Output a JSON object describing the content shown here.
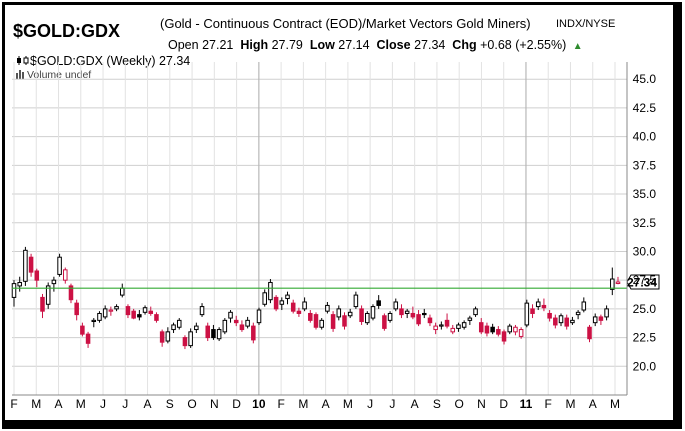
{
  "header": {
    "symbol": "$GOLD:GDX",
    "description": "(Gold - Continuous Contract (EOD)/Market Vectors Gold Miners)",
    "exchange": "INDX/NYSE",
    "open_label": "Open",
    "open_value": "27.21",
    "high_label": "High",
    "high_value": "27.79",
    "low_label": "Low",
    "low_value": "27.14",
    "close_label": "Close",
    "close_value": "27.34",
    "chg_label": "Chg",
    "chg_value": "+0.68 (+2.55%)"
  },
  "legend": {
    "series_label": "$GOLD:GDX (Weekly) 27.34",
    "volume_label": "Volume undef"
  },
  "colors": {
    "up": "#000000",
    "down": "#cc1144",
    "last_price_line": "#33aa33",
    "grid": "#cfcfcf"
  },
  "chart_data": {
    "type": "candlestick",
    "interval": "Weekly",
    "y_axis": {
      "min": 17.5,
      "max": 46.5,
      "ticks": [
        "45.0",
        "42.5",
        "40.0",
        "37.5",
        "35.0",
        "32.5",
        "30.0",
        "27.5",
        "25.0",
        "22.5",
        "20.0"
      ],
      "position": "right"
    },
    "x_axis": {
      "labels": [
        "F",
        "M",
        "A",
        "M",
        "J",
        "J",
        "A",
        "S",
        "O",
        "N",
        "D",
        "10",
        "F",
        "M",
        "A",
        "M",
        "J",
        "J",
        "A",
        "S",
        "O",
        "N",
        "D",
        "11",
        "F",
        "M",
        "A",
        "M"
      ]
    },
    "last_price": "27.34",
    "grid": true,
    "candles": [
      {
        "o": 26.0,
        "h": 27.5,
        "l": 25.2,
        "c": 27.2
      },
      {
        "o": 27.0,
        "h": 27.8,
        "l": 26.5,
        "c": 27.3
      },
      {
        "o": 27.4,
        "h": 30.4,
        "l": 27.0,
        "c": 30.1
      },
      {
        "o": 29.5,
        "h": 29.8,
        "l": 27.8,
        "c": 28.2
      },
      {
        "o": 28.3,
        "h": 28.5,
        "l": 26.9,
        "c": 27.5
      },
      {
        "o": 26.0,
        "h": 26.3,
        "l": 24.2,
        "c": 24.8
      },
      {
        "o": 25.4,
        "h": 27.3,
        "l": 25.0,
        "c": 27.0
      },
      {
        "o": 27.2,
        "h": 27.8,
        "l": 26.5,
        "c": 27.5
      },
      {
        "o": 28.0,
        "h": 29.8,
        "l": 27.8,
        "c": 29.5
      },
      {
        "o": 27.5,
        "h": 28.6,
        "l": 27.2,
        "c": 28.4
      },
      {
        "o": 27.0,
        "h": 27.2,
        "l": 25.5,
        "c": 25.8
      },
      {
        "o": 25.5,
        "h": 25.8,
        "l": 24.0,
        "c": 24.5
      },
      {
        "o": 23.5,
        "h": 23.8,
        "l": 22.6,
        "c": 22.8
      },
      {
        "o": 22.8,
        "h": 23.0,
        "l": 21.6,
        "c": 22.0
      },
      {
        "o": 23.9,
        "h": 24.2,
        "l": 23.4,
        "c": 24.0
      },
      {
        "o": 24.0,
        "h": 24.8,
        "l": 23.8,
        "c": 24.6
      },
      {
        "o": 24.3,
        "h": 25.3,
        "l": 24.1,
        "c": 25.0
      },
      {
        "o": 24.8,
        "h": 25.2,
        "l": 24.4,
        "c": 24.9
      },
      {
        "o": 25.0,
        "h": 25.4,
        "l": 24.8,
        "c": 25.2
      },
      {
        "o": 26.2,
        "h": 27.2,
        "l": 26.0,
        "c": 26.8
      },
      {
        "o": 25.2,
        "h": 25.4,
        "l": 24.2,
        "c": 24.5
      },
      {
        "o": 24.8,
        "h": 25.0,
        "l": 24.1,
        "c": 24.2
      },
      {
        "o": 24.5,
        "h": 24.9,
        "l": 24.0,
        "c": 24.3
      },
      {
        "o": 24.7,
        "h": 25.3,
        "l": 24.5,
        "c": 25.1
      },
      {
        "o": 24.8,
        "h": 25.2,
        "l": 24.4,
        "c": 24.6
      },
      {
        "o": 24.5,
        "h": 24.7,
        "l": 23.8,
        "c": 24.0
      },
      {
        "o": 23.0,
        "h": 23.2,
        "l": 21.7,
        "c": 22.1
      },
      {
        "o": 22.2,
        "h": 23.4,
        "l": 22.0,
        "c": 23.0
      },
      {
        "o": 23.2,
        "h": 23.8,
        "l": 22.9,
        "c": 23.6
      },
      {
        "o": 23.4,
        "h": 24.2,
        "l": 23.2,
        "c": 24.0
      },
      {
        "o": 22.5,
        "h": 22.7,
        "l": 21.5,
        "c": 21.8
      },
      {
        "o": 21.8,
        "h": 23.3,
        "l": 21.6,
        "c": 23.0
      },
      {
        "o": 23.2,
        "h": 23.8,
        "l": 22.9,
        "c": 23.5
      },
      {
        "o": 24.5,
        "h": 25.5,
        "l": 24.3,
        "c": 25.2
      },
      {
        "o": 23.5,
        "h": 23.8,
        "l": 22.2,
        "c": 22.5
      },
      {
        "o": 23.2,
        "h": 23.6,
        "l": 22.3,
        "c": 22.5
      },
      {
        "o": 22.4,
        "h": 23.4,
        "l": 22.2,
        "c": 23.2
      },
      {
        "o": 23.0,
        "h": 24.2,
        "l": 22.8,
        "c": 24.0
      },
      {
        "o": 24.2,
        "h": 24.9,
        "l": 23.8,
        "c": 24.7
      },
      {
        "o": 24.0,
        "h": 24.4,
        "l": 23.5,
        "c": 23.8
      },
      {
        "o": 23.6,
        "h": 24.0,
        "l": 23.0,
        "c": 23.2
      },
      {
        "o": 23.5,
        "h": 24.3,
        "l": 23.3,
        "c": 24.0
      },
      {
        "o": 23.5,
        "h": 23.8,
        "l": 22.0,
        "c": 22.3
      },
      {
        "o": 23.8,
        "h": 25.1,
        "l": 23.6,
        "c": 24.9
      },
      {
        "o": 25.4,
        "h": 26.7,
        "l": 25.2,
        "c": 26.4
      },
      {
        "o": 25.8,
        "h": 27.6,
        "l": 25.5,
        "c": 27.3
      },
      {
        "o": 26.0,
        "h": 26.2,
        "l": 24.8,
        "c": 25.0
      },
      {
        "o": 25.4,
        "h": 26.0,
        "l": 24.9,
        "c": 25.7
      },
      {
        "o": 25.9,
        "h": 26.5,
        "l": 25.4,
        "c": 26.2
      },
      {
        "o": 25.5,
        "h": 25.8,
        "l": 24.6,
        "c": 24.8
      },
      {
        "o": 24.8,
        "h": 25.1,
        "l": 24.3,
        "c": 24.6
      },
      {
        "o": 25.0,
        "h": 26.0,
        "l": 24.8,
        "c": 25.6
      },
      {
        "o": 24.6,
        "h": 24.9,
        "l": 23.8,
        "c": 24.0
      },
      {
        "o": 24.5,
        "h": 24.7,
        "l": 23.2,
        "c": 23.4
      },
      {
        "o": 23.4,
        "h": 24.2,
        "l": 23.2,
        "c": 24.0
      },
      {
        "o": 24.8,
        "h": 25.6,
        "l": 24.6,
        "c": 25.3
      },
      {
        "o": 24.5,
        "h": 24.8,
        "l": 23.0,
        "c": 23.3
      },
      {
        "o": 24.3,
        "h": 25.3,
        "l": 24.0,
        "c": 25.0
      },
      {
        "o": 24.4,
        "h": 24.7,
        "l": 23.2,
        "c": 23.5
      },
      {
        "o": 24.4,
        "h": 25.0,
        "l": 24.2,
        "c": 24.7
      },
      {
        "o": 25.2,
        "h": 26.5,
        "l": 25.0,
        "c": 26.2
      },
      {
        "o": 25.0,
        "h": 25.3,
        "l": 23.6,
        "c": 23.9
      },
      {
        "o": 23.8,
        "h": 24.8,
        "l": 23.6,
        "c": 24.6
      },
      {
        "o": 24.2,
        "h": 25.4,
        "l": 24.0,
        "c": 25.2
      },
      {
        "o": 25.7,
        "h": 26.2,
        "l": 25.0,
        "c": 25.3
      },
      {
        "o": 24.4,
        "h": 24.6,
        "l": 23.1,
        "c": 23.3
      },
      {
        "o": 24.0,
        "h": 24.8,
        "l": 23.8,
        "c": 24.6
      },
      {
        "o": 25.0,
        "h": 25.9,
        "l": 24.8,
        "c": 25.6
      },
      {
        "o": 25.0,
        "h": 25.4,
        "l": 24.2,
        "c": 24.5
      },
      {
        "o": 24.6,
        "h": 25.0,
        "l": 24.2,
        "c": 24.8
      },
      {
        "o": 24.6,
        "h": 25.2,
        "l": 24.1,
        "c": 24.3
      },
      {
        "o": 24.5,
        "h": 24.9,
        "l": 23.5,
        "c": 23.7
      },
      {
        "o": 24.6,
        "h": 25.0,
        "l": 24.2,
        "c": 24.5
      },
      {
        "o": 24.2,
        "h": 24.5,
        "l": 23.5,
        "c": 23.8
      },
      {
        "o": 23.2,
        "h": 23.8,
        "l": 22.8,
        "c": 23.5
      },
      {
        "o": 23.5,
        "h": 23.9,
        "l": 23.2,
        "c": 23.6
      },
      {
        "o": 24.0,
        "h": 24.6,
        "l": 23.3,
        "c": 23.5
      },
      {
        "o": 23.0,
        "h": 23.6,
        "l": 22.8,
        "c": 23.3
      },
      {
        "o": 23.3,
        "h": 23.8,
        "l": 23.0,
        "c": 23.6
      },
      {
        "o": 23.4,
        "h": 24.0,
        "l": 23.2,
        "c": 23.8
      },
      {
        "o": 24.0,
        "h": 24.4,
        "l": 23.6,
        "c": 24.2
      },
      {
        "o": 24.5,
        "h": 25.2,
        "l": 24.3,
        "c": 25.0
      },
      {
        "o": 23.8,
        "h": 24.2,
        "l": 22.8,
        "c": 23.0
      },
      {
        "o": 23.5,
        "h": 23.8,
        "l": 22.6,
        "c": 22.9
      },
      {
        "o": 23.4,
        "h": 23.7,
        "l": 22.8,
        "c": 23.0
      },
      {
        "o": 23.2,
        "h": 23.5,
        "l": 22.6,
        "c": 22.8
      },
      {
        "o": 23.0,
        "h": 23.2,
        "l": 21.9,
        "c": 22.2
      },
      {
        "o": 23.0,
        "h": 23.7,
        "l": 22.8,
        "c": 23.5
      },
      {
        "o": 23.0,
        "h": 23.6,
        "l": 22.7,
        "c": 23.4
      },
      {
        "o": 22.6,
        "h": 23.4,
        "l": 22.4,
        "c": 23.2
      },
      {
        "o": 23.6,
        "h": 25.8,
        "l": 23.4,
        "c": 25.5
      },
      {
        "o": 25.0,
        "h": 25.4,
        "l": 24.2,
        "c": 24.6
      },
      {
        "o": 25.2,
        "h": 25.9,
        "l": 24.9,
        "c": 25.6
      },
      {
        "o": 25.3,
        "h": 25.9,
        "l": 24.8,
        "c": 25.1
      },
      {
        "o": 24.6,
        "h": 24.9,
        "l": 23.9,
        "c": 24.2
      },
      {
        "o": 24.2,
        "h": 24.5,
        "l": 23.3,
        "c": 23.6
      },
      {
        "o": 23.8,
        "h": 24.6,
        "l": 23.5,
        "c": 24.4
      },
      {
        "o": 24.2,
        "h": 24.5,
        "l": 23.2,
        "c": 23.5
      },
      {
        "o": 23.8,
        "h": 24.3,
        "l": 23.6,
        "c": 24.0
      },
      {
        "o": 24.5,
        "h": 24.9,
        "l": 24.1,
        "c": 24.7
      },
      {
        "o": 24.9,
        "h": 26.0,
        "l": 24.7,
        "c": 25.6
      },
      {
        "o": 23.4,
        "h": 23.6,
        "l": 22.1,
        "c": 22.4
      },
      {
        "o": 23.8,
        "h": 24.6,
        "l": 23.5,
        "c": 24.3
      },
      {
        "o": 24.3,
        "h": 24.5,
        "l": 23.6,
        "c": 24.0
      },
      {
        "o": 24.3,
        "h": 25.3,
        "l": 24.0,
        "c": 25.0
      },
      {
        "o": 26.7,
        "h": 28.6,
        "l": 26.2,
        "c": 27.6
      },
      {
        "o": 27.21,
        "h": 27.79,
        "l": 27.14,
        "c": 27.34
      }
    ]
  }
}
